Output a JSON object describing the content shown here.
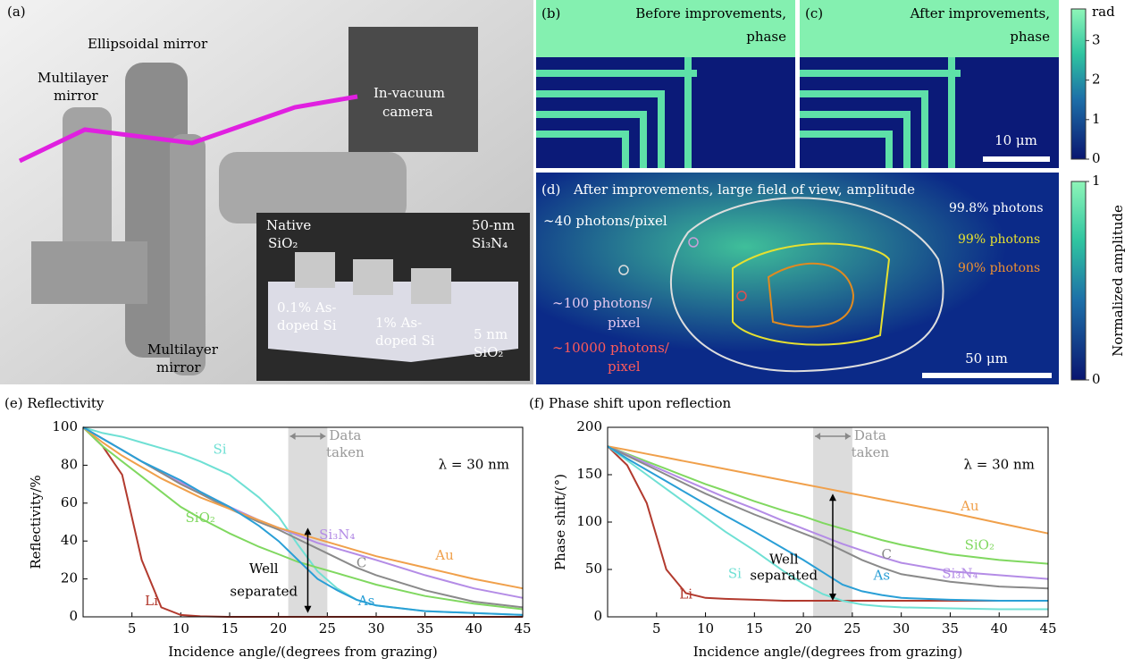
{
  "panel_a": {
    "label": "(a)",
    "labels": [
      [
        "Ellipsoidal mirror"
      ],
      [
        "Multilayer",
        "mirror"
      ],
      [
        "In-vacuum",
        "camera"
      ],
      [
        "Multilayer",
        "mirror"
      ]
    ],
    "inset": [
      [
        "Native",
        "SiO₂"
      ],
      [
        "50-nm",
        "Si₃N₄"
      ],
      [
        "0.1% As-",
        "doped Si"
      ],
      [
        "1% As-",
        "doped Si"
      ],
      [
        "5 nm",
        "SiO₂"
      ]
    ]
  },
  "panel_b": {
    "label": "(b)",
    "title": [
      "Before improvements,",
      "phase"
    ]
  },
  "panel_c": {
    "label": "(c)",
    "title": [
      "After improvements,",
      "phase"
    ],
    "scale_bar": "10 μm"
  },
  "phase_colorbar": {
    "unit": "rad",
    "lim": [
      0,
      3.8
    ],
    "ticks": [
      0,
      1,
      2,
      3
    ]
  },
  "panel_d": {
    "label": "(d)",
    "title": "After improvements, large field of view, amplitude",
    "annotations": [
      [
        "∼40 photons/pixel"
      ],
      [
        "∼100 photons/",
        "pixel"
      ],
      [
        "∼10000 photons/",
        "pixel"
      ],
      [
        "99.8% photons"
      ],
      [
        "99% photons"
      ],
      [
        "90% photons"
      ]
    ],
    "scale_bar": "50 μm"
  },
  "amplitude_colorbar": {
    "label": "Normalized amplitude",
    "lim": [
      0,
      1
    ],
    "ticks": [
      0,
      1
    ]
  },
  "chart_data": [
    {
      "type": "line",
      "title": "(e) Reflectivity",
      "x_label": "Incidence angle/(degrees from grazing)",
      "y_label": "Reflectivity/%",
      "xlim": [
        0,
        45
      ],
      "xticks": [
        5,
        10,
        15,
        20,
        25,
        30,
        35,
        40,
        45
      ],
      "ylim": [
        0,
        100
      ],
      "yticks": [
        0,
        20,
        40,
        60,
        80,
        100
      ],
      "x": [
        0,
        2,
        4,
        6,
        8,
        10,
        12,
        15,
        18,
        20,
        22,
        24,
        26,
        28,
        30,
        35,
        40,
        45
      ],
      "series": [
        {
          "name": "Li",
          "color": "#b23a2e",
          "values": [
            100,
            90,
            75,
            30,
            5,
            1,
            0.3,
            0,
            0,
            0,
            0,
            0,
            0,
            0,
            0,
            0,
            0,
            0
          ]
        },
        {
          "name": "Si",
          "color": "#6fe0d4",
          "values": [
            100,
            97,
            95,
            92,
            89,
            86,
            82,
            75,
            63,
            53,
            38,
            24,
            15,
            9,
            6,
            3,
            2,
            1
          ]
        },
        {
          "name": "SiO₂",
          "color": "#80d860",
          "values": [
            100,
            90,
            82,
            74,
            66,
            58,
            52,
            44,
            37,
            33,
            29,
            26,
            23,
            20,
            17,
            11,
            7,
            4
          ]
        },
        {
          "name": "Si₃N₄",
          "color": "#b48ce6",
          "values": [
            100,
            94,
            88,
            82,
            76,
            71,
            66,
            58,
            51,
            47,
            43,
            39,
            36,
            33,
            30,
            22,
            15,
            10
          ]
        },
        {
          "name": "C",
          "color": "#8a8a8a",
          "values": [
            100,
            94,
            88,
            82,
            76,
            70,
            65,
            57,
            50,
            46,
            41,
            36,
            31,
            26,
            22,
            14,
            8,
            5
          ]
        },
        {
          "name": "Au",
          "color": "#f0a04b",
          "values": [
            100,
            92,
            85,
            79,
            73,
            68,
            63,
            57,
            51,
            47,
            44,
            41,
            38,
            35,
            32,
            26,
            20,
            15
          ]
        },
        {
          "name": "As",
          "color": "#2a9fd6",
          "values": [
            100,
            94,
            88,
            82,
            77,
            72,
            66,
            58,
            48,
            40,
            30,
            20,
            14,
            9,
            6,
            3,
            2,
            1
          ]
        }
      ],
      "span": [
        21,
        25
      ],
      "span_label": [
        "Data",
        "taken"
      ],
      "arrow": {
        "x": 23,
        "y": [
          2,
          47
        ]
      },
      "arrow_label": [
        "Well",
        "separated"
      ],
      "wavelength": "λ = 30 nm"
    },
    {
      "type": "line",
      "title": "(f) Phase shift upon reflection",
      "x_label": "Incidence angle/(degrees from grazing)",
      "y_label": "Phase shift/(°)",
      "xlim": [
        0,
        45
      ],
      "xticks": [
        5,
        10,
        15,
        20,
        25,
        30,
        35,
        40,
        45
      ],
      "ylim": [
        0,
        200
      ],
      "yticks": [
        0,
        50,
        100,
        150,
        200
      ],
      "x": [
        0,
        2,
        4,
        6,
        8,
        10,
        12,
        15,
        18,
        20,
        22,
        24,
        26,
        28,
        30,
        35,
        40,
        45
      ],
      "series": [
        {
          "name": "Li",
          "color": "#b23a2e",
          "values": [
            180,
            160,
            120,
            50,
            25,
            20,
            19,
            18,
            17,
            17,
            17,
            17,
            17,
            17,
            17,
            17,
            17,
            17
          ]
        },
        {
          "name": "Si",
          "color": "#6fe0d4",
          "values": [
            180,
            165,
            150,
            135,
            120,
            105,
            90,
            70,
            48,
            35,
            24,
            17,
            13,
            11,
            10,
            9,
            8,
            8
          ]
        },
        {
          "name": "SiO₂",
          "color": "#80d860",
          "values": [
            180,
            172,
            164,
            156,
            148,
            140,
            133,
            122,
            112,
            106,
            99,
            93,
            87,
            81,
            76,
            66,
            60,
            56
          ]
        },
        {
          "name": "Si₃N₄",
          "color": "#b48ce6",
          "values": [
            180,
            171,
            162,
            153,
            144,
            135,
            126,
            114,
            101,
            93,
            85,
            77,
            70,
            63,
            57,
            48,
            44,
            40
          ]
        },
        {
          "name": "C",
          "color": "#8a8a8a",
          "values": [
            180,
            170,
            160,
            150,
            140,
            130,
            121,
            108,
            96,
            88,
            80,
            70,
            60,
            52,
            45,
            37,
            32,
            30
          ]
        },
        {
          "name": "Au",
          "color": "#f0a04b",
          "values": [
            180,
            176,
            172,
            168,
            164,
            160,
            156,
            150,
            144,
            140,
            136,
            132,
            128,
            124,
            120,
            110,
            99,
            88
          ]
        },
        {
          "name": "As",
          "color": "#2a9fd6",
          "values": [
            180,
            167,
            155,
            143,
            131,
            119,
            107,
            90,
            72,
            60,
            47,
            34,
            27,
            23,
            20,
            18,
            17,
            17
          ]
        }
      ],
      "span": [
        21,
        25
      ],
      "span_label": [
        "Data",
        "taken"
      ],
      "arrow": {
        "x": 23,
        "y": [
          17,
          130
        ]
      },
      "arrow_label": [
        "Well",
        "separated"
      ],
      "wavelength": "λ = 30 nm"
    }
  ]
}
